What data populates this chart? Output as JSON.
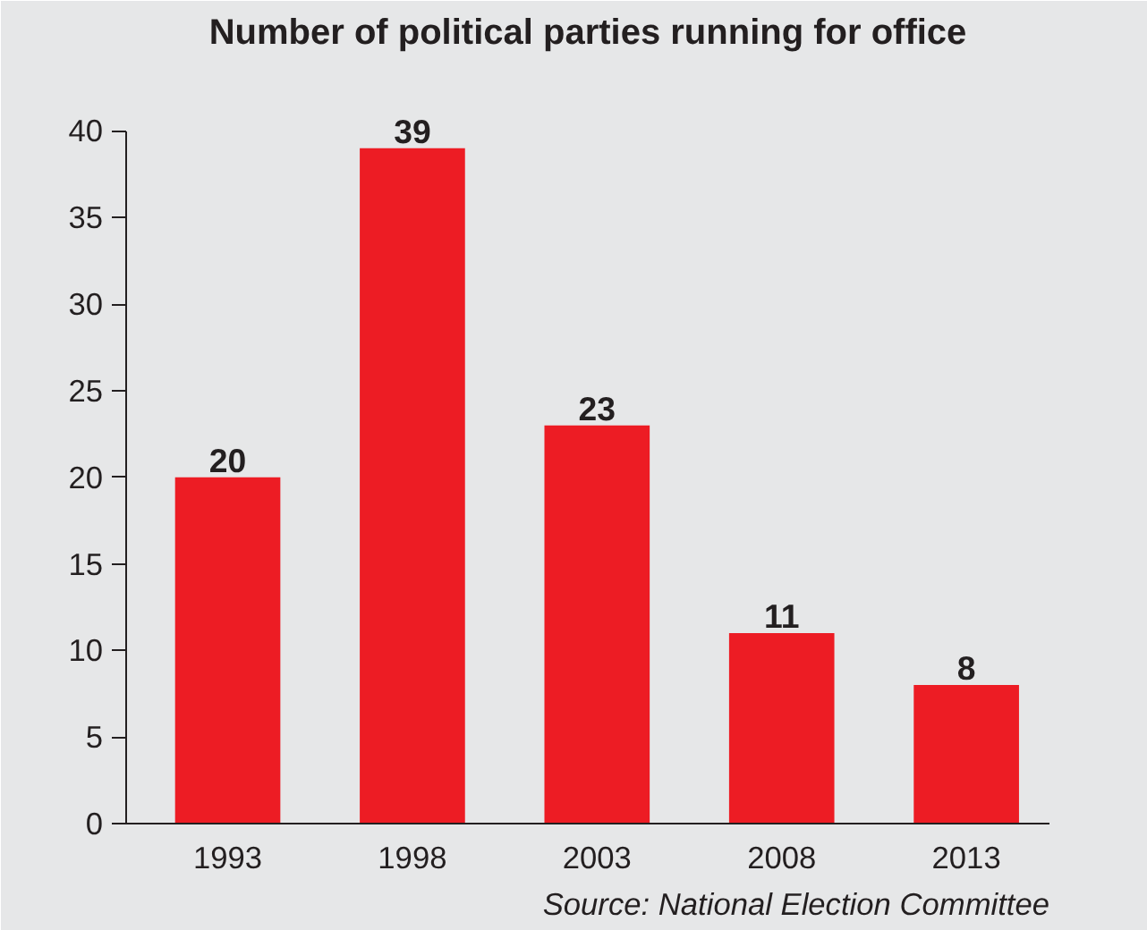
{
  "chart_data": {
    "type": "bar",
    "title": "Number of political parties running for office",
    "categories": [
      "1993",
      "1998",
      "2003",
      "2008",
      "2013"
    ],
    "values": [
      20,
      39,
      23,
      11,
      8
    ],
    "color": "#ed1c24",
    "ylim": [
      0,
      40
    ],
    "yticks": [
      0,
      5,
      10,
      15,
      20,
      25,
      30,
      35,
      40
    ],
    "data_labels": true,
    "annotations": [
      "Source: National Election Committee"
    ]
  }
}
